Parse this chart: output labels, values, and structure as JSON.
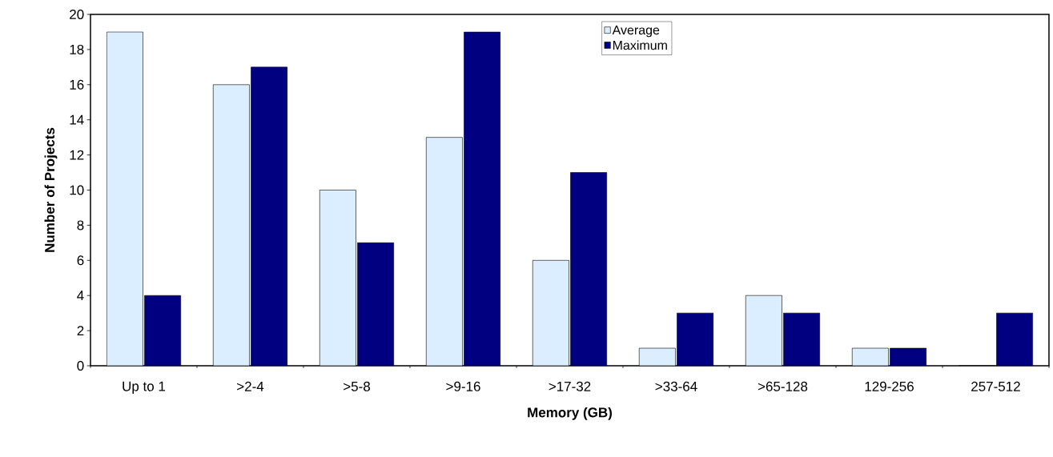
{
  "chart_data": {
    "type": "bar",
    "xlabel": "Memory (GB)",
    "ylabel": "Number of Projects",
    "categories": [
      "Up to 1",
      ">2-4",
      ">5-8",
      ">9-16",
      ">17-32",
      ">33-64",
      ">65-128",
      "129-256",
      "257-512"
    ],
    "series": [
      {
        "name": "Average",
        "color": "#dbeeff",
        "values": [
          19,
          16,
          10,
          13,
          6,
          1,
          4,
          1,
          0
        ]
      },
      {
        "name": "Maximum",
        "color": "#000080",
        "values": [
          4,
          17,
          7,
          19,
          11,
          3,
          3,
          1,
          3
        ]
      }
    ],
    "ylim": [
      0,
      20
    ],
    "yticks": [
      0,
      2,
      4,
      6,
      8,
      10,
      12,
      14,
      16,
      18,
      20
    ],
    "grid": false,
    "legend": "top"
  }
}
